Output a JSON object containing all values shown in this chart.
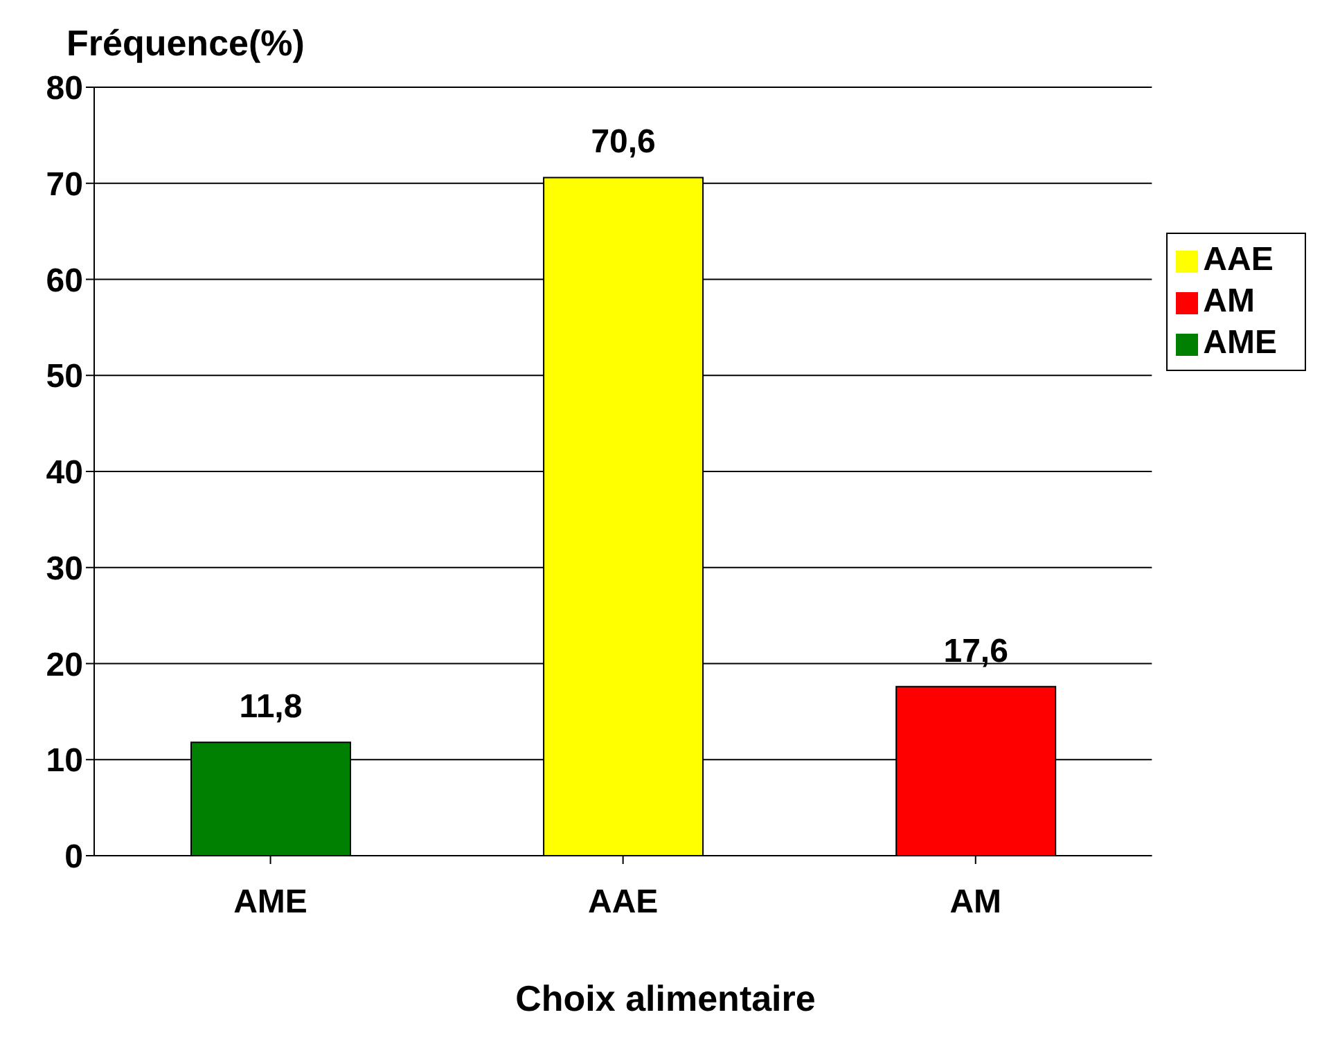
{
  "chart_data": {
    "type": "bar",
    "xlabel": "Choix alimentaire",
    "ylabel": "Fréquence(%)",
    "categories": [
      "AME",
      "AAE",
      "AM"
    ],
    "series": [
      {
        "name": "AME",
        "color": "#008000",
        "values": [
          11.8,
          null,
          null
        ],
        "value_labels": [
          "11,8",
          null,
          null
        ]
      },
      {
        "name": "AAE",
        "color": "#ffff00",
        "values": [
          null,
          70.6,
          null
        ],
        "value_labels": [
          null,
          "70,6",
          null
        ]
      },
      {
        "name": "AM",
        "color": "#ff0000",
        "values": [
          null,
          null,
          17.6
        ],
        "value_labels": [
          null,
          null,
          "17,6"
        ]
      }
    ],
    "stacked": true,
    "ylim": [
      0,
      80
    ],
    "yticks": [
      0,
      10,
      20,
      30,
      40,
      50,
      60,
      70,
      80
    ],
    "grid": "y",
    "legend": "right"
  }
}
